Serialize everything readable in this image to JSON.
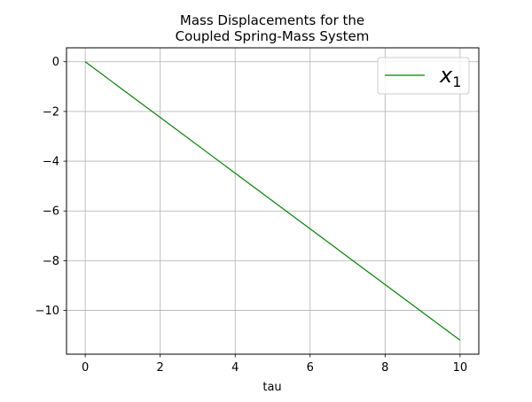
{
  "chart_data": {
    "type": "line",
    "title_line1": "Mass Displacements for the",
    "title_line2": "Coupled Spring-Mass System",
    "xlabel": "tau",
    "ylabel": "",
    "xlim": [
      -0.5,
      10.5
    ],
    "ylim": [
      -11.76,
      0.56
    ],
    "xticks": [
      0,
      2,
      4,
      6,
      8,
      10
    ],
    "yticks": [
      0,
      -2,
      -4,
      -6,
      -8,
      -10
    ],
    "xtick_labels": [
      "0",
      "2",
      "4",
      "6",
      "8",
      "10"
    ],
    "ytick_labels": [
      "0",
      "−2",
      "−4",
      "−6",
      "−8",
      "−10"
    ],
    "grid": true,
    "legend_position": "top-right",
    "series": [
      {
        "name": "x1",
        "legend_main": "x",
        "legend_sub": "1",
        "color": "#008000",
        "x": [
          0,
          10
        ],
        "y": [
          0,
          -11.2
        ]
      }
    ]
  }
}
